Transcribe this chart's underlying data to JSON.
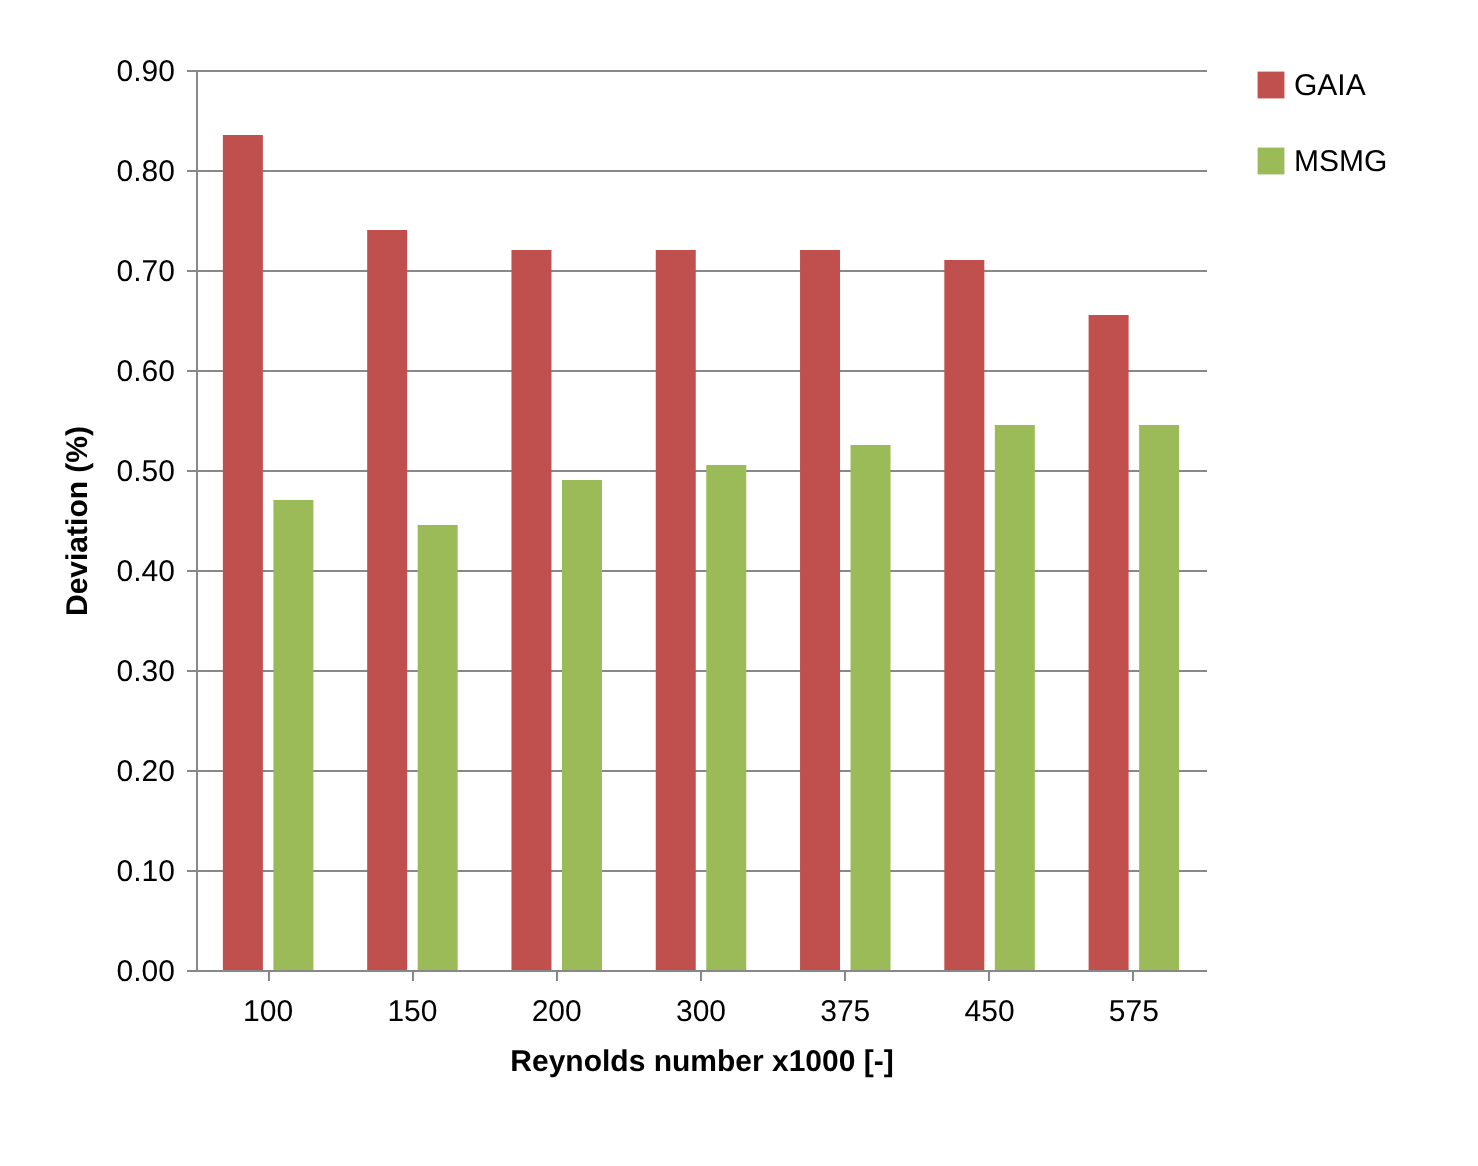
{
  "chart_data": {
    "type": "bar",
    "xlabel": "Reynolds  number x1000 [-]",
    "ylabel": "Deviation  (%)",
    "categories": [
      "100",
      "150",
      "200",
      "300",
      "375",
      "450",
      "575"
    ],
    "series": [
      {
        "name": "GAIA",
        "color": "#c0504d",
        "values": [
          0.835,
          0.74,
          0.72,
          0.72,
          0.72,
          0.71,
          0.655
        ]
      },
      {
        "name": "MSMG",
        "color": "#9bbb59",
        "values": [
          0.47,
          0.445,
          0.49,
          0.505,
          0.525,
          0.545,
          0.545
        ]
      }
    ],
    "ylim": [
      0,
      0.9
    ],
    "yticks": [
      {
        "value": 0,
        "label": "0.00"
      },
      {
        "value": 0.1,
        "label": "0.10"
      },
      {
        "value": 0.2,
        "label": "0.20"
      },
      {
        "value": 0.3,
        "label": "0.30"
      },
      {
        "value": 0.4,
        "label": "0.40"
      },
      {
        "value": 0.5,
        "label": "0.50"
      },
      {
        "value": 0.6,
        "label": "0.60"
      },
      {
        "value": 0.7,
        "label": "0.70"
      },
      {
        "value": 0.8,
        "label": "0.80"
      },
      {
        "value": 0.9,
        "label": "0.90"
      }
    ],
    "grid": "y",
    "legend": "right"
  }
}
